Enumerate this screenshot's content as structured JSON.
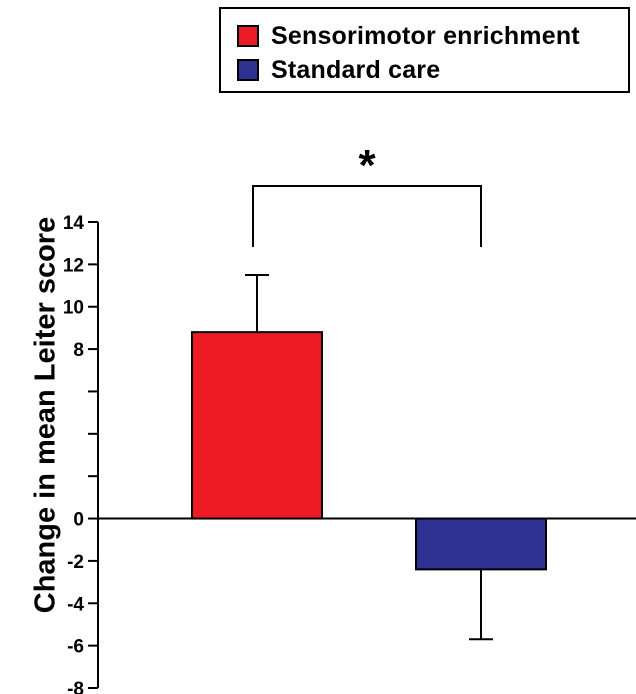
{
  "chart_data": {
    "type": "bar",
    "categories": [
      "Sensorimotor enrichment",
      "Standard care"
    ],
    "values": [
      8.8,
      -2.4
    ],
    "error_plus": [
      2.7,
      0
    ],
    "error_minus": [
      0,
      3.3
    ],
    "colors": [
      "#ed1c24",
      "#2e3192"
    ],
    "ylabel": "Change in mean Leiter score",
    "ylim": [
      -8,
      14
    ],
    "yticks": [
      -8,
      -6,
      -4,
      -2,
      0,
      2,
      4,
      6,
      8,
      10,
      12,
      14
    ],
    "ytick_labels": [
      "-8",
      "-6",
      "-4",
      "-2",
      "0",
      "",
      "",
      "",
      "8",
      "10",
      "12",
      "14"
    ],
    "legend": {
      "position": "top-right",
      "entries": [
        {
          "label": "Sensorimotor enrichment",
          "color": "#ed1c24"
        },
        {
          "label": "Standard care",
          "color": "#2e3192"
        }
      ]
    },
    "annotation": {
      "text": "*",
      "between": [
        "Sensorimotor enrichment",
        "Standard care"
      ]
    },
    "grid": false
  }
}
